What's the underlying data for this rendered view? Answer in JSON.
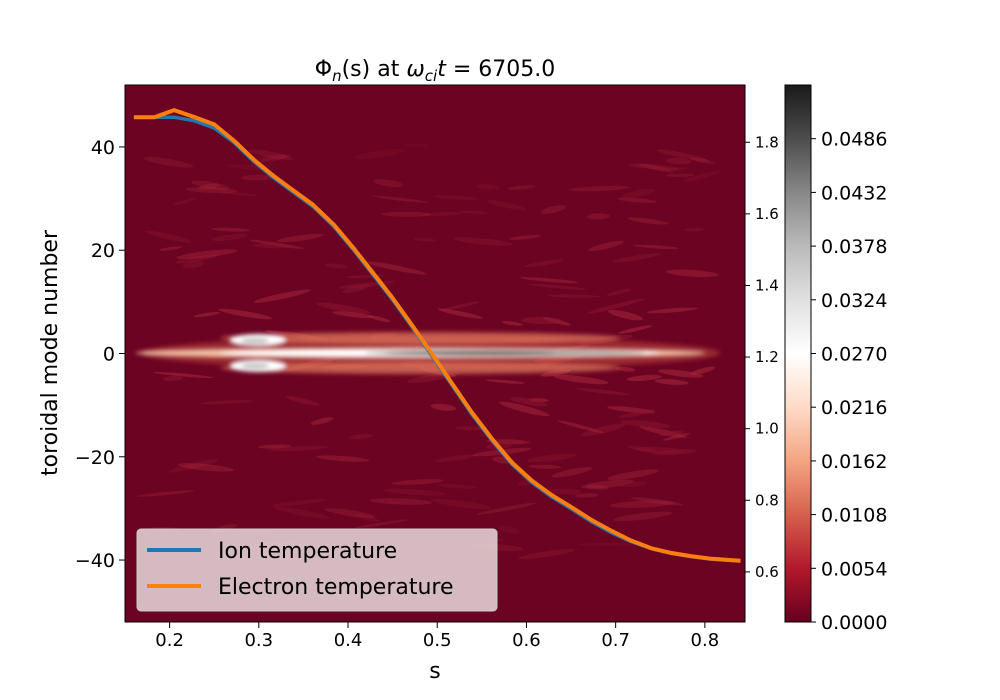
{
  "chart_data": {
    "type": "heatmap",
    "title": "Φn(s) at ωcit = 6705.0",
    "title_parts": {
      "phi": "Φ",
      "phi_sub": "n",
      "phi_arg": "(s) at ",
      "omega": "ω",
      "omega_sub": "ci",
      "t": "t",
      "eq": " = 6705.0"
    },
    "xlabel": "s",
    "ylabel": "toroidal mode number",
    "xlim": [
      0.15,
      0.845
    ],
    "ylim": [
      -52,
      52
    ],
    "xticks": [
      "0.2",
      "0.3",
      "0.4",
      "0.5",
      "0.6",
      "0.7",
      "0.8"
    ],
    "yticks": [
      "−40",
      "−20",
      "0",
      "20",
      "40"
    ],
    "right_axis": {
      "ylim": [
        0.46,
        1.96
      ],
      "ticks": [
        "0.6",
        "0.8",
        "1.0",
        "1.2",
        "1.4",
        "1.6",
        "1.8"
      ]
    },
    "colorbar": {
      "range": [
        0.0,
        0.054
      ],
      "ticks": [
        "0.0000",
        "0.0054",
        "0.0108",
        "0.0162",
        "0.0216",
        "0.0270",
        "0.0324",
        "0.0378",
        "0.0432",
        "0.0486"
      ],
      "colormap": "RdGy",
      "colors": [
        "#67001f",
        "#b2182b",
        "#d6604d",
        "#f4a582",
        "#fddbc7",
        "#ffffff",
        "#e0e0e0",
        "#bababa",
        "#878787",
        "#4d4d4d",
        "#1a1a1a"
      ]
    },
    "legend": {
      "position": "lower-left",
      "entries": [
        "Ion temperature",
        "Electron temperature"
      ]
    },
    "series": [
      {
        "name": "Ion temperature",
        "color": "#1f77b4",
        "axis": "right",
        "x": [
          0.16,
          0.183,
          0.205,
          0.228,
          0.25,
          0.272,
          0.295,
          0.317,
          0.339,
          0.361,
          0.384,
          0.406,
          0.428,
          0.45,
          0.473,
          0.495,
          0.517,
          0.539,
          0.562,
          0.584,
          0.606,
          0.628,
          0.651,
          0.673,
          0.695,
          0.717,
          0.74,
          0.762,
          0.784,
          0.806,
          0.829,
          0.84
        ],
        "y": [
          1.87,
          1.87,
          1.87,
          1.86,
          1.84,
          1.8,
          1.745,
          1.7,
          1.66,
          1.62,
          1.565,
          1.5,
          1.43,
          1.36,
          1.28,
          1.2,
          1.12,
          1.04,
          0.965,
          0.9,
          0.85,
          0.81,
          0.775,
          0.74,
          0.71,
          0.685,
          0.665,
          0.652,
          0.643,
          0.636,
          0.632,
          0.63
        ]
      },
      {
        "name": "Electron temperature",
        "color": "#ff7f0e",
        "axis": "right",
        "x": [
          0.16,
          0.183,
          0.205,
          0.228,
          0.25,
          0.272,
          0.295,
          0.317,
          0.339,
          0.361,
          0.384,
          0.406,
          0.428,
          0.45,
          0.473,
          0.495,
          0.517,
          0.539,
          0.562,
          0.584,
          0.606,
          0.628,
          0.651,
          0.673,
          0.695,
          0.717,
          0.74,
          0.762,
          0.784,
          0.806,
          0.829,
          0.84
        ],
        "y": [
          1.87,
          1.87,
          1.89,
          1.87,
          1.85,
          1.805,
          1.75,
          1.705,
          1.665,
          1.625,
          1.57,
          1.505,
          1.435,
          1.365,
          1.285,
          1.205,
          1.125,
          1.045,
          0.97,
          0.905,
          0.855,
          0.815,
          0.78,
          0.745,
          0.715,
          0.688,
          0.666,
          0.653,
          0.644,
          0.637,
          0.633,
          0.631
        ]
      }
    ]
  }
}
